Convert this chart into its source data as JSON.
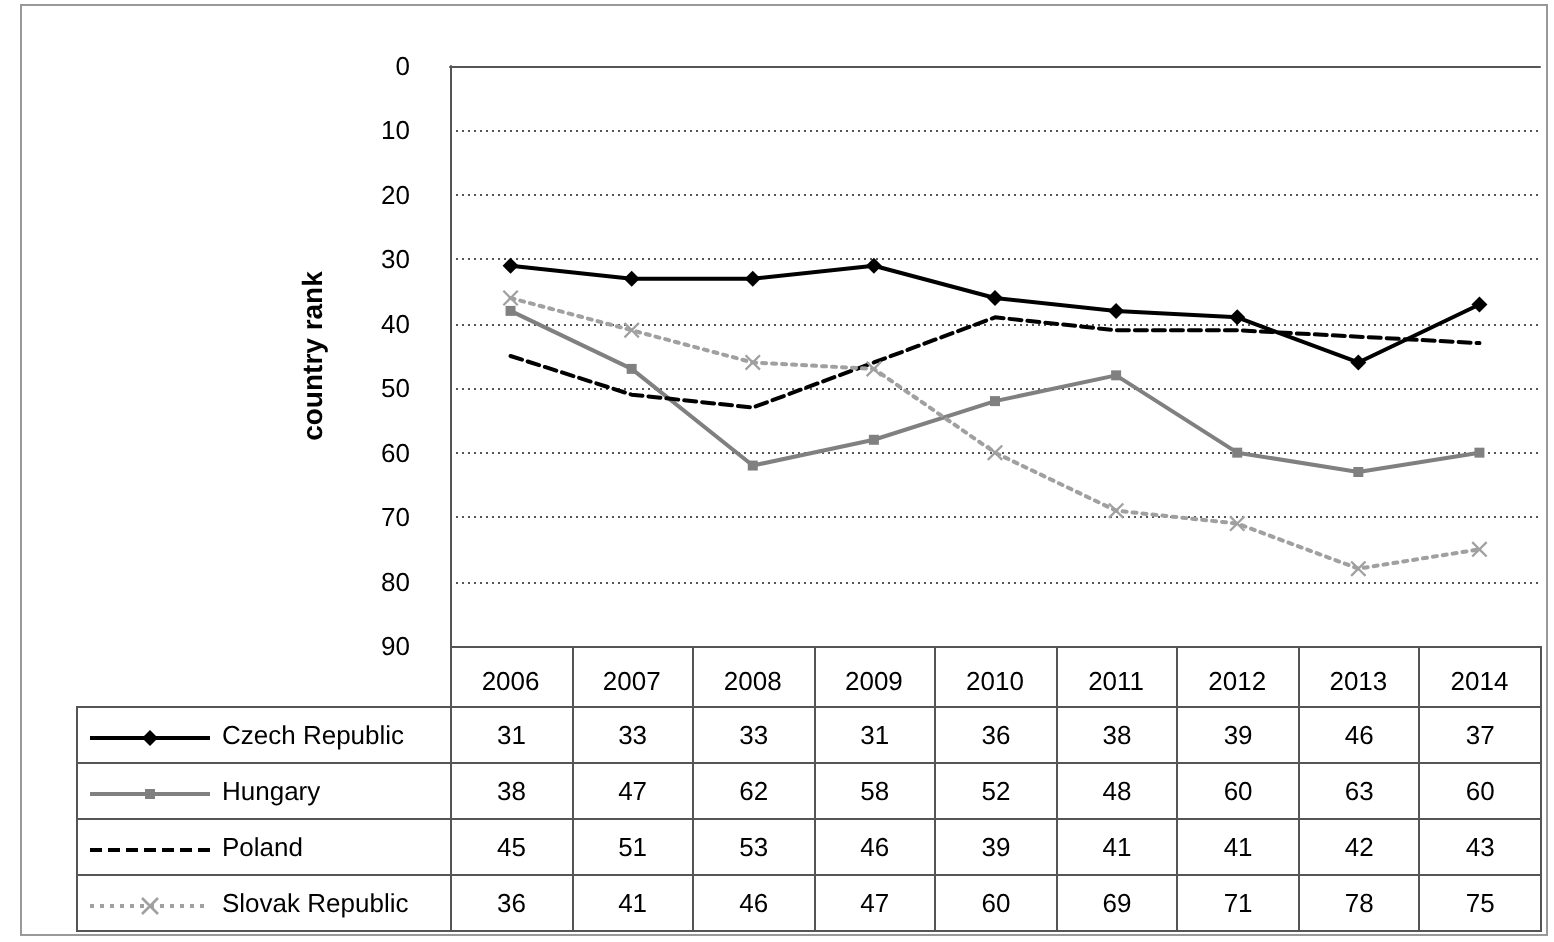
{
  "chart_data": {
    "type": "line",
    "ylabel": "country rank",
    "categories": [
      "2006",
      "2007",
      "2008",
      "2009",
      "2010",
      "2011",
      "2012",
      "2013",
      "2014"
    ],
    "series": [
      {
        "name": "Czech Republic",
        "color": "#000000",
        "marker": "diamond",
        "line_style": "solid",
        "values": [
          31,
          33,
          33,
          31,
          36,
          38,
          39,
          46,
          37
        ]
      },
      {
        "name": "Hungary",
        "color": "#808080",
        "marker": "square",
        "line_style": "solid",
        "values": [
          38,
          47,
          62,
          58,
          52,
          48,
          60,
          63,
          60
        ]
      },
      {
        "name": "Poland",
        "color": "#000000",
        "marker": "none",
        "line_style": "dashed",
        "values": [
          45,
          51,
          53,
          46,
          39,
          41,
          41,
          42,
          43
        ]
      },
      {
        "name": "Slovak Republic",
        "color": "#a0a0a0",
        "marker": "cross",
        "line_style": "dotted",
        "values": [
          36,
          41,
          46,
          47,
          60,
          69,
          71,
          78,
          75
        ]
      }
    ],
    "ylim": [
      90,
      0
    ],
    "yticks": [
      0,
      10,
      20,
      30,
      40,
      50,
      60,
      70,
      80,
      90
    ],
    "grid": "y",
    "data_labels": true,
    "legend": "bottom"
  }
}
